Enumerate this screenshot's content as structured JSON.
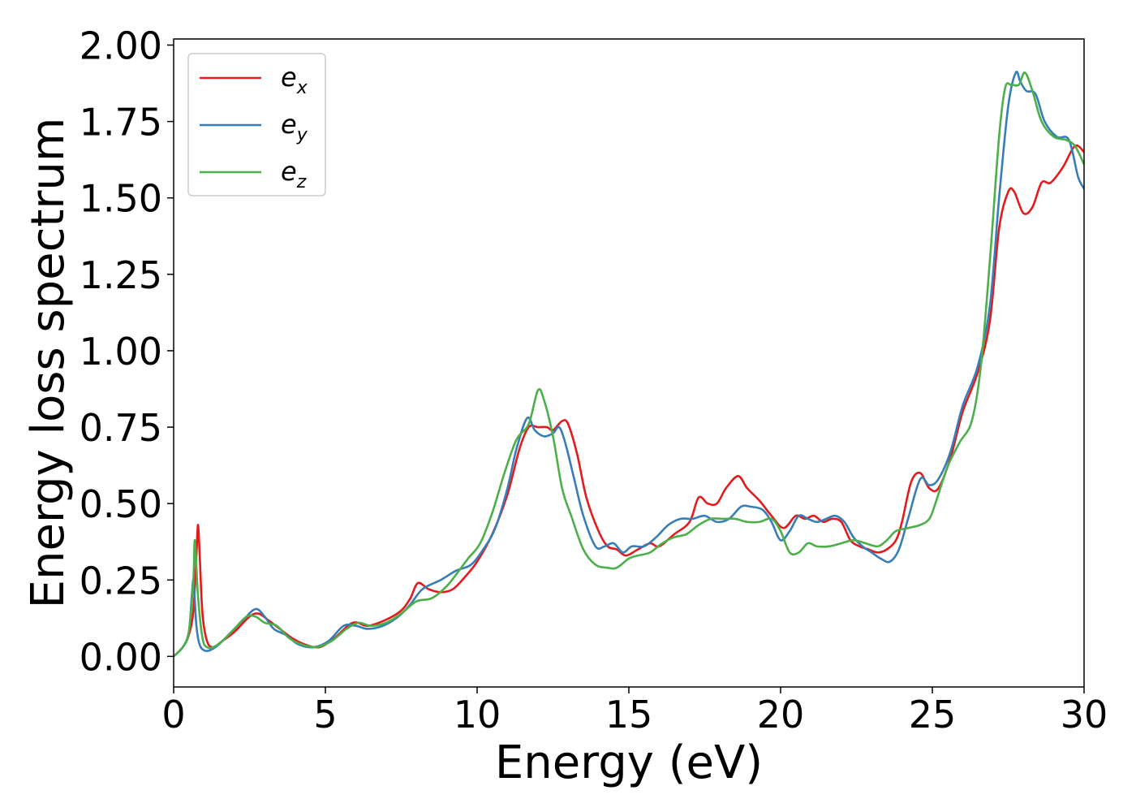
{
  "chart_data": {
    "type": "line",
    "xlabel": "Energy (eV)",
    "ylabel": "Energy loss spectrum",
    "xlim": [
      0,
      30
    ],
    "ylim": [
      -0.1,
      2.02
    ],
    "xticks": [
      0,
      5,
      10,
      15,
      20,
      25,
      30
    ],
    "xtick_labels": [
      "0",
      "5",
      "10",
      "15",
      "20",
      "25",
      "30"
    ],
    "yticks": [
      0,
      0.25,
      0.5,
      0.75,
      1.0,
      1.25,
      1.5,
      1.75,
      2.0
    ],
    "ytick_labels": [
      "0.00",
      "0.25",
      "0.50",
      "0.75",
      "1.00",
      "1.25",
      "1.50",
      "1.75",
      "2.00"
    ],
    "grid": false,
    "legend_position": "top-left",
    "series": [
      {
        "name": "e",
        "sub": "x",
        "color": "#e41a1c",
        "x": [
          0,
          0.3,
          0.5,
          0.65,
          0.75,
          0.8,
          0.85,
          0.95,
          1.1,
          1.3,
          1.6,
          2.0,
          2.5,
          2.8,
          3.1,
          3.5,
          3.9,
          4.3,
          4.8,
          5.3,
          5.9,
          6.4,
          7.0,
          7.5,
          7.8,
          8.05,
          8.4,
          8.8,
          9.2,
          9.6,
          10.0,
          10.5,
          11.0,
          11.4,
          11.7,
          12.0,
          12.3,
          12.5,
          12.8,
          13.0,
          13.3,
          13.6,
          14.0,
          14.3,
          14.6,
          14.9,
          15.3,
          15.7,
          16.0,
          16.5,
          17.0,
          17.3,
          17.6,
          17.9,
          18.2,
          18.6,
          18.9,
          19.3,
          19.7,
          20.1,
          20.5,
          20.8,
          21.1,
          21.4,
          21.7,
          22.0,
          22.3,
          22.6,
          22.9,
          23.2,
          23.5,
          23.8,
          24.0,
          24.3,
          24.6,
          24.9,
          25.2,
          25.6,
          26.0,
          26.5,
          26.9,
          27.2,
          27.5,
          27.7,
          28.0,
          28.3,
          28.6,
          28.9,
          29.3,
          29.7,
          30.0
        ],
        "y": [
          0,
          0.03,
          0.07,
          0.15,
          0.33,
          0.43,
          0.35,
          0.14,
          0.05,
          0.03,
          0.05,
          0.08,
          0.13,
          0.14,
          0.12,
          0.09,
          0.06,
          0.04,
          0.03,
          0.06,
          0.11,
          0.1,
          0.12,
          0.15,
          0.19,
          0.24,
          0.22,
          0.21,
          0.22,
          0.26,
          0.31,
          0.4,
          0.53,
          0.68,
          0.75,
          0.75,
          0.75,
          0.74,
          0.77,
          0.76,
          0.66,
          0.52,
          0.41,
          0.36,
          0.35,
          0.33,
          0.35,
          0.37,
          0.36,
          0.4,
          0.44,
          0.52,
          0.5,
          0.5,
          0.55,
          0.59,
          0.55,
          0.51,
          0.46,
          0.42,
          0.46,
          0.45,
          0.46,
          0.44,
          0.45,
          0.44,
          0.38,
          0.36,
          0.35,
          0.34,
          0.35,
          0.38,
          0.44,
          0.57,
          0.6,
          0.55,
          0.55,
          0.65,
          0.8,
          0.93,
          1.1,
          1.4,
          1.52,
          1.52,
          1.45,
          1.47,
          1.55,
          1.55,
          1.6,
          1.67,
          1.65
        ]
      },
      {
        "name": "e",
        "sub": "y",
        "color": "#377eb8",
        "x": [
          0,
          0.3,
          0.5,
          0.6,
          0.65,
          0.7,
          0.75,
          0.85,
          1.0,
          1.2,
          1.5,
          1.9,
          2.3,
          2.7,
          3.0,
          3.3,
          3.7,
          4.1,
          4.6,
          5.1,
          5.6,
          6.0,
          6.4,
          6.9,
          7.4,
          7.8,
          8.2,
          8.8,
          9.3,
          9.8,
          10.2,
          10.6,
          11.0,
          11.3,
          11.65,
          11.9,
          12.2,
          12.5,
          12.7,
          12.9,
          13.2,
          13.5,
          13.9,
          14.2,
          14.5,
          14.8,
          15.1,
          15.5,
          15.9,
          16.3,
          16.7,
          17.1,
          17.5,
          17.9,
          18.3,
          18.7,
          19.0,
          19.4,
          19.7,
          20.0,
          20.3,
          20.6,
          20.9,
          21.2,
          21.5,
          21.8,
          22.1,
          22.4,
          22.7,
          23.0,
          23.3,
          23.6,
          23.9,
          24.2,
          24.6,
          24.9,
          25.2,
          25.6,
          26.0,
          26.5,
          26.9,
          27.2,
          27.5,
          27.75,
          27.9,
          28.1,
          28.4,
          28.7,
          29.1,
          29.5,
          29.8,
          30.0
        ],
        "y": [
          0,
          0.03,
          0.08,
          0.2,
          0.25,
          0.18,
          0.1,
          0.04,
          0.02,
          0.02,
          0.04,
          0.08,
          0.12,
          0.155,
          0.13,
          0.09,
          0.07,
          0.04,
          0.03,
          0.05,
          0.1,
          0.1,
          0.09,
          0.1,
          0.13,
          0.17,
          0.22,
          0.25,
          0.28,
          0.3,
          0.35,
          0.42,
          0.55,
          0.68,
          0.78,
          0.74,
          0.72,
          0.73,
          0.75,
          0.7,
          0.58,
          0.46,
          0.36,
          0.36,
          0.37,
          0.34,
          0.36,
          0.36,
          0.39,
          0.43,
          0.45,
          0.45,
          0.46,
          0.44,
          0.45,
          0.49,
          0.49,
          0.48,
          0.44,
          0.38,
          0.41,
          0.46,
          0.45,
          0.44,
          0.45,
          0.46,
          0.44,
          0.39,
          0.36,
          0.34,
          0.32,
          0.31,
          0.35,
          0.45,
          0.58,
          0.56,
          0.58,
          0.67,
          0.82,
          0.95,
          1.15,
          1.5,
          1.8,
          1.91,
          1.88,
          1.85,
          1.84,
          1.75,
          1.7,
          1.69,
          1.57,
          1.53
        ]
      },
      {
        "name": "e",
        "sub": "z",
        "color": "#4daf4a",
        "x": [
          0,
          0.3,
          0.5,
          0.65,
          0.7,
          0.8,
          0.95,
          1.1,
          1.3,
          1.6,
          2.0,
          2.4,
          2.7,
          3.0,
          3.4,
          3.8,
          4.2,
          4.7,
          5.2,
          5.7,
          6.1,
          6.5,
          7.0,
          7.5,
          8.0,
          8.5,
          9.0,
          9.4,
          9.7,
          10.1,
          10.5,
          10.9,
          11.3,
          11.7,
          12.0,
          12.2,
          12.5,
          12.8,
          13.1,
          13.5,
          13.9,
          14.3,
          14.6,
          15.0,
          15.3,
          15.7,
          16.1,
          16.5,
          16.9,
          17.3,
          17.7,
          18.1,
          18.5,
          18.9,
          19.3,
          19.7,
          20.0,
          20.3,
          20.6,
          20.9,
          21.2,
          21.6,
          22.0,
          22.4,
          22.8,
          23.2,
          23.5,
          23.8,
          24.2,
          24.6,
          24.9,
          25.1,
          25.5,
          25.9,
          26.3,
          26.6,
          26.9,
          27.2,
          27.4,
          27.6,
          27.85,
          28.05,
          28.3,
          28.6,
          29.0,
          29.4,
          29.7,
          30.0
        ],
        "y": [
          0,
          0.03,
          0.08,
          0.25,
          0.38,
          0.2,
          0.06,
          0.03,
          0.03,
          0.05,
          0.09,
          0.13,
          0.13,
          0.11,
          0.1,
          0.06,
          0.04,
          0.03,
          0.05,
          0.09,
          0.11,
          0.1,
          0.11,
          0.14,
          0.18,
          0.19,
          0.23,
          0.28,
          0.32,
          0.37,
          0.47,
          0.6,
          0.71,
          0.76,
          0.87,
          0.84,
          0.72,
          0.55,
          0.46,
          0.35,
          0.3,
          0.29,
          0.29,
          0.32,
          0.33,
          0.34,
          0.37,
          0.39,
          0.4,
          0.43,
          0.45,
          0.45,
          0.45,
          0.44,
          0.44,
          0.45,
          0.41,
          0.34,
          0.34,
          0.37,
          0.36,
          0.36,
          0.37,
          0.38,
          0.37,
          0.36,
          0.38,
          0.41,
          0.42,
          0.43,
          0.45,
          0.5,
          0.62,
          0.7,
          0.77,
          0.95,
          1.3,
          1.7,
          1.86,
          1.87,
          1.87,
          1.91,
          1.85,
          1.75,
          1.7,
          1.69,
          1.67,
          1.61
        ]
      }
    ]
  }
}
